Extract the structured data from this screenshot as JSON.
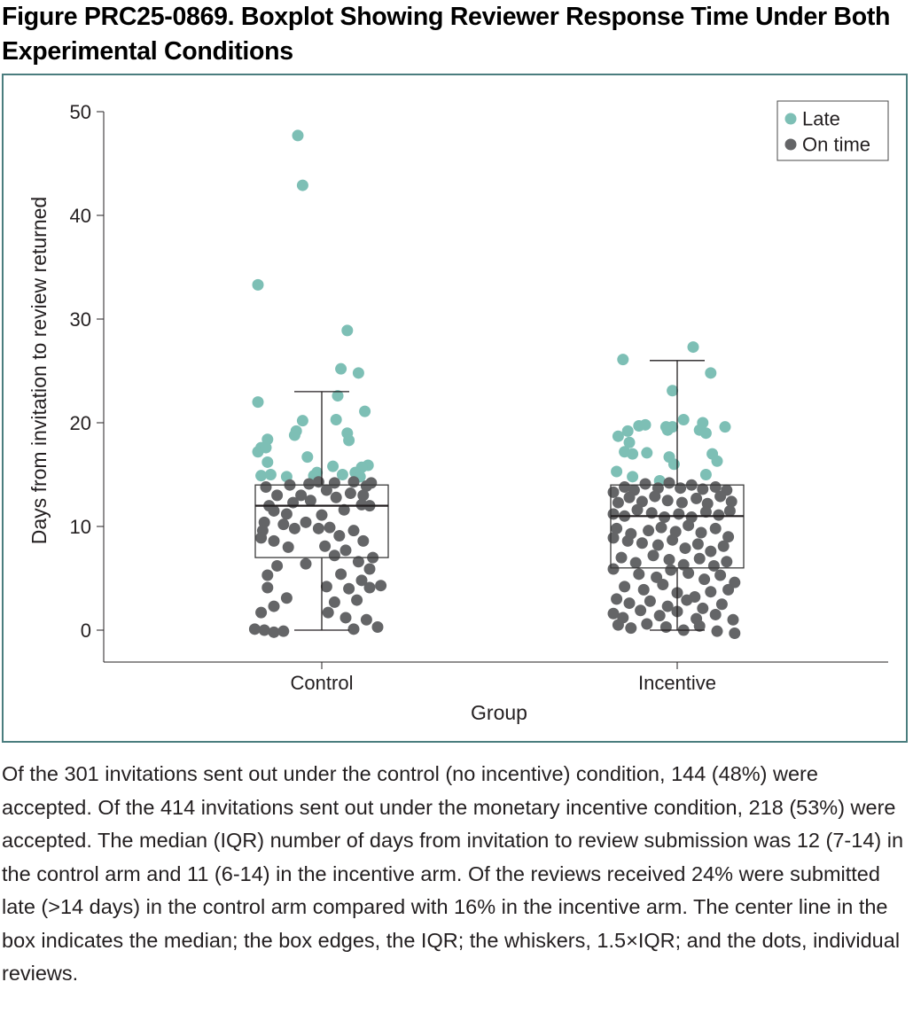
{
  "figure": {
    "title": "Figure PRC25-0869. Boxplot Showing Reviewer Response Time Under Both Experimental Conditions",
    "caption": "Of the 301 invitations sent out under the control (no incentive) condition, 144 (48%) were accepted. Of the 414 invitations sent out under the monetary incentive condition, 218 (53%) were accepted. The median (IQR) number of days from invitation to review submission was 12 (7-14) in the control arm and 11 (6-14) in the incentive arm. Of the reviews received 24% were submitted late (>14 days) in the control arm compared with 16% in the incentive arm. The center line in the box indicates the median; the box edges, the IQR; the whiskers, 1.5×IQR; and the dots, individual reviews."
  },
  "colors": {
    "late": "#7dbfb5",
    "on_time": "#646567",
    "frame": "#4a7d7e",
    "axis": "#231f20"
  },
  "chart_data": {
    "type": "boxplot",
    "title": "",
    "xlabel": "Group",
    "ylabel": "Days from invitation to review returned",
    "ylim": [
      -3,
      50
    ],
    "yticks": [
      0,
      10,
      20,
      30,
      40,
      50
    ],
    "ytick_labels": [
      "0",
      "10",
      "20",
      "30",
      "40",
      "50"
    ],
    "categories": [
      "Control",
      "Incentive"
    ],
    "grid": false,
    "legend": {
      "position": "top-right",
      "entries": [
        {
          "label": "Late",
          "color_key": "late"
        },
        {
          "label": "On time",
          "color_key": "on_time"
        }
      ]
    },
    "boxes": [
      {
        "group": "Control",
        "whisker_low": 0,
        "q1": 7,
        "median": 12,
        "q3": 14,
        "whisker_high": 23
      },
      {
        "group": "Incentive",
        "whisker_low": 0,
        "q1": 6,
        "median": 11,
        "q3": 14,
        "whisker_high": 26
      }
    ],
    "points": {
      "Control": {
        "late": [
          [
            -0.15,
            47.7
          ],
          [
            -0.12,
            42.9
          ],
          [
            -0.4,
            33.3
          ],
          [
            0.16,
            28.9
          ],
          [
            0.12,
            25.2
          ],
          [
            0.23,
            24.8
          ],
          [
            0.1,
            22.6
          ],
          [
            -0.4,
            22.0
          ],
          [
            0.27,
            21.1
          ],
          [
            -0.12,
            20.2
          ],
          [
            0.09,
            20.3
          ],
          [
            -0.16,
            19.2
          ],
          [
            -0.17,
            18.8
          ],
          [
            0.16,
            19.0
          ],
          [
            -0.34,
            18.4
          ],
          [
            0.17,
            18.3
          ],
          [
            -0.38,
            17.6
          ],
          [
            -0.4,
            17.2
          ],
          [
            -0.35,
            17.6
          ],
          [
            -0.34,
            16.2
          ],
          [
            -0.09,
            16.7
          ],
          [
            -0.32,
            15.0
          ],
          [
            -0.38,
            14.9
          ],
          [
            0.07,
            15.8
          ],
          [
            0.29,
            15.9
          ],
          [
            0.25,
            15.7
          ],
          [
            -0.22,
            14.8
          ],
          [
            0.21,
            15.2
          ],
          [
            0.24,
            14.8
          ],
          [
            -0.03,
            15.2
          ],
          [
            -0.05,
            14.9
          ],
          [
            0.13,
            15.0
          ]
        ],
        "on_time": [
          [
            -0.35,
            13.8
          ],
          [
            -0.2,
            14.0
          ],
          [
            -0.08,
            14.1
          ],
          [
            -0.02,
            14.3
          ],
          [
            0.08,
            14.2
          ],
          [
            0.2,
            14.3
          ],
          [
            0.28,
            13.9
          ],
          [
            0.31,
            14.2
          ],
          [
            -0.28,
            13.0
          ],
          [
            -0.13,
            13.0
          ],
          [
            0.03,
            13.5
          ],
          [
            0.18,
            13.2
          ],
          [
            0.26,
            13.0
          ],
          [
            -0.33,
            12.0
          ],
          [
            -0.18,
            12.3
          ],
          [
            -0.07,
            12.5
          ],
          [
            0.09,
            12.8
          ],
          [
            0.25,
            12.1
          ],
          [
            -0.3,
            11.5
          ],
          [
            -0.22,
            11.2
          ],
          [
            0.0,
            11.1
          ],
          [
            0.14,
            11.6
          ],
          [
            0.3,
            12.0
          ],
          [
            -0.36,
            10.4
          ],
          [
            -0.24,
            10.2
          ],
          [
            -0.1,
            10.4
          ],
          [
            0.05,
            9.9
          ],
          [
            0.2,
            9.6
          ],
          [
            -0.37,
            9.6
          ],
          [
            -0.17,
            9.8
          ],
          [
            -0.02,
            9.8
          ],
          [
            0.11,
            9.1
          ],
          [
            0.26,
            8.6
          ],
          [
            -0.38,
            8.9
          ],
          [
            -0.3,
            8.6
          ],
          [
            -0.21,
            8.0
          ],
          [
            0.02,
            8.1
          ],
          [
            0.15,
            7.7
          ],
          [
            0.32,
            7.0
          ],
          [
            -0.28,
            6.2
          ],
          [
            -0.1,
            6.4
          ],
          [
            0.08,
            7.2
          ],
          [
            0.23,
            6.6
          ],
          [
            0.3,
            5.9
          ],
          [
            -0.34,
            5.3
          ],
          [
            0.12,
            5.4
          ],
          [
            0.25,
            4.8
          ],
          [
            -0.34,
            4.1
          ],
          [
            0.03,
            4.2
          ],
          [
            0.17,
            4.0
          ],
          [
            0.3,
            4.1
          ],
          [
            0.37,
            4.3
          ],
          [
            -0.22,
            3.1
          ],
          [
            0.08,
            2.7
          ],
          [
            0.22,
            2.9
          ],
          [
            -0.3,
            2.3
          ],
          [
            -0.38,
            1.7
          ],
          [
            0.04,
            1.7
          ],
          [
            0.15,
            1.2
          ],
          [
            0.28,
            1.0
          ],
          [
            -0.42,
            0.1
          ],
          [
            -0.36,
            0.0
          ],
          [
            -0.3,
            -0.2
          ],
          [
            -0.24,
            -0.1
          ],
          [
            0.2,
            0.1
          ],
          [
            0.35,
            0.3
          ]
        ]
      },
      "Incentive": {
        "late": [
          [
            0.1,
            27.3
          ],
          [
            -0.34,
            26.1
          ],
          [
            0.21,
            24.8
          ],
          [
            -0.03,
            23.1
          ],
          [
            0.04,
            20.3
          ],
          [
            -0.07,
            19.6
          ],
          [
            0.16,
            20.0
          ],
          [
            -0.24,
            19.7
          ],
          [
            -0.2,
            19.8
          ],
          [
            0.3,
            19.6
          ],
          [
            -0.31,
            19.2
          ],
          [
            -0.37,
            18.7
          ],
          [
            -0.3,
            18.1
          ],
          [
            0.14,
            19.3
          ],
          [
            0.18,
            19.0
          ],
          [
            -0.06,
            19.3
          ],
          [
            -0.03,
            19.6
          ],
          [
            -0.33,
            17.2
          ],
          [
            -0.28,
            17.0
          ],
          [
            -0.19,
            17.1
          ],
          [
            -0.05,
            16.7
          ],
          [
            -0.02,
            16.0
          ],
          [
            0.22,
            17.0
          ],
          [
            0.25,
            16.3
          ],
          [
            -0.38,
            15.3
          ],
          [
            -0.28,
            14.8
          ],
          [
            0.18,
            15.0
          ],
          [
            -0.11,
            14.4
          ]
        ],
        "on_time": [
          [
            -0.4,
            13.3
          ],
          [
            -0.33,
            13.8
          ],
          [
            -0.27,
            13.5
          ],
          [
            -0.2,
            14.1
          ],
          [
            -0.12,
            13.7
          ],
          [
            -0.05,
            14.2
          ],
          [
            0.02,
            13.7
          ],
          [
            0.09,
            14.0
          ],
          [
            0.16,
            13.6
          ],
          [
            0.24,
            13.8
          ],
          [
            0.31,
            13.5
          ],
          [
            -0.37,
            12.3
          ],
          [
            -0.3,
            12.8
          ],
          [
            -0.22,
            12.4
          ],
          [
            -0.14,
            12.9
          ],
          [
            -0.06,
            12.5
          ],
          [
            0.03,
            12.3
          ],
          [
            0.12,
            12.7
          ],
          [
            0.19,
            12.2
          ],
          [
            0.27,
            12.9
          ],
          [
            0.34,
            12.4
          ],
          [
            -0.4,
            11.2
          ],
          [
            -0.33,
            11.0
          ],
          [
            -0.25,
            11.6
          ],
          [
            -0.16,
            11.3
          ],
          [
            -0.08,
            10.9
          ],
          [
            0.01,
            11.2
          ],
          [
            0.09,
            10.9
          ],
          [
            0.18,
            11.4
          ],
          [
            0.26,
            11.1
          ],
          [
            0.33,
            11.5
          ],
          [
            -0.38,
            9.8
          ],
          [
            -0.29,
            9.3
          ],
          [
            -0.18,
            9.6
          ],
          [
            -0.1,
            9.9
          ],
          [
            -0.01,
            9.5
          ],
          [
            0.07,
            10.1
          ],
          [
            0.15,
            9.4
          ],
          [
            0.24,
            9.8
          ],
          [
            0.32,
            9.0
          ],
          [
            -0.4,
            8.9
          ],
          [
            -0.31,
            8.6
          ],
          [
            -0.22,
            8.4
          ],
          [
            -0.12,
            8.2
          ],
          [
            -0.03,
            8.7
          ],
          [
            0.05,
            7.9
          ],
          [
            0.13,
            8.3
          ],
          [
            0.21,
            7.6
          ],
          [
            0.29,
            8.1
          ],
          [
            -0.35,
            7.0
          ],
          [
            -0.26,
            6.5
          ],
          [
            -0.15,
            7.2
          ],
          [
            -0.05,
            6.8
          ],
          [
            0.04,
            6.3
          ],
          [
            0.14,
            6.9
          ],
          [
            0.23,
            6.2
          ],
          [
            0.31,
            6.6
          ],
          [
            -0.4,
            5.9
          ],
          [
            -0.24,
            5.4
          ],
          [
            -0.13,
            5.1
          ],
          [
            -0.04,
            5.8
          ],
          [
            0.07,
            5.5
          ],
          [
            0.17,
            4.9
          ],
          [
            0.27,
            5.3
          ],
          [
            0.36,
            4.6
          ],
          [
            -0.33,
            4.2
          ],
          [
            -0.21,
            3.9
          ],
          [
            -0.09,
            4.4
          ],
          [
            0.0,
            3.6
          ],
          [
            0.11,
            3.2
          ],
          [
            0.21,
            3.7
          ],
          [
            0.32,
            3.9
          ],
          [
            -0.38,
            3.0
          ],
          [
            -0.3,
            2.6
          ],
          [
            -0.17,
            2.8
          ],
          [
            -0.06,
            2.3
          ],
          [
            0.06,
            2.9
          ],
          [
            0.16,
            2.1
          ],
          [
            0.28,
            2.5
          ],
          [
            -0.4,
            1.6
          ],
          [
            -0.34,
            1.2
          ],
          [
            -0.23,
            1.9
          ],
          [
            -0.11,
            1.4
          ],
          [
            0.0,
            1.8
          ],
          [
            0.12,
            1.1
          ],
          [
            0.24,
            1.5
          ],
          [
            0.35,
            1.0
          ],
          [
            -0.37,
            0.5
          ],
          [
            -0.29,
            0.2
          ],
          [
            -0.19,
            0.6
          ],
          [
            -0.07,
            0.3
          ],
          [
            0.04,
            0.0
          ],
          [
            0.14,
            0.4
          ],
          [
            0.25,
            -0.1
          ],
          [
            0.36,
            -0.3
          ]
        ]
      }
    }
  }
}
